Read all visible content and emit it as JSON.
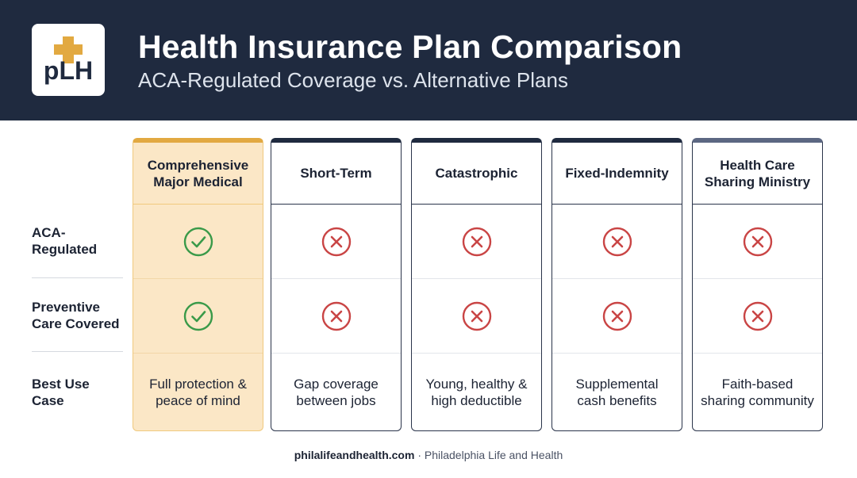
{
  "header": {
    "logo_text": "pLH",
    "title": "Health Insurance Plan Comparison",
    "subtitle": "ACA-Regulated Coverage vs. Alternative Plans"
  },
  "row_labels": {
    "aca_regulated": "ACA-\nRegulated",
    "preventive_care": "Preventive\nCare Covered",
    "best_use_case": "Best Use\nCase"
  },
  "columns": [
    {
      "name": "Comprehensive\nMajor Medical",
      "aca_regulated": "check-icon",
      "preventive_care": "check-icon",
      "best_use_case": "Full protection &\npeace of mind",
      "highlighted": true
    },
    {
      "name": "Short-Term",
      "aca_regulated": "x-icon",
      "preventive_care": "x-icon",
      "best_use_case": "Gap coverage\nbetween jobs",
      "highlighted": false
    },
    {
      "name": "Catastrophic",
      "aca_regulated": "x-icon",
      "preventive_care": "x-icon",
      "best_use_case": "Young, healthy &\nhigh deductible",
      "highlighted": false
    },
    {
      "name": "Fixed-Indemnity",
      "aca_regulated": "x-icon",
      "preventive_care": "x-icon",
      "best_use_case": "Supplemental\ncash benefits",
      "highlighted": false
    },
    {
      "name": "Health Care\nSharing Ministry",
      "aca_regulated": "x-icon",
      "preventive_care": "x-icon",
      "best_use_case": "Faith-based\nsharing community",
      "highlighted": false
    }
  ],
  "footer": {
    "site": "philalifeandhealth.com",
    "separator": " · ",
    "org": "Philadelphia Life and Health"
  },
  "colors": {
    "header_bg": "#1f2a3f",
    "highlight_bg": "#fbe7c6",
    "highlight_accent": "#e2a941",
    "check": "#3a9a49",
    "cross": "#c94545"
  }
}
